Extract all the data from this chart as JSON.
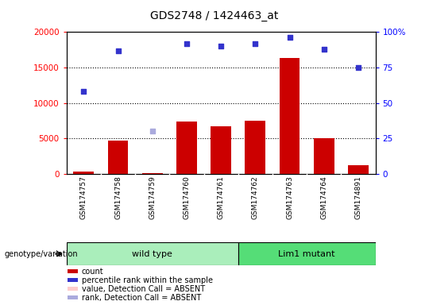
{
  "title": "GDS2748 / 1424463_at",
  "samples": [
    "GSM174757",
    "GSM174758",
    "GSM174759",
    "GSM174760",
    "GSM174761",
    "GSM174762",
    "GSM174763",
    "GSM174764",
    "GSM174891"
  ],
  "count_values": [
    300,
    4700,
    150,
    7400,
    6700,
    7500,
    16300,
    5000,
    1200
  ],
  "rank_values": [
    58,
    87,
    null,
    92,
    90,
    92,
    96,
    88,
    75
  ],
  "rank_absent": [
    null,
    null,
    30,
    null,
    null,
    null,
    null,
    null,
    null
  ],
  "wild_type_indices": [
    0,
    1,
    2,
    3,
    4
  ],
  "lim1_mutant_indices": [
    5,
    6,
    7,
    8
  ],
  "left_ylim": [
    0,
    20000
  ],
  "right_ylim": [
    0,
    100
  ],
  "left_yticks": [
    0,
    5000,
    10000,
    15000,
    20000
  ],
  "right_yticks": [
    0,
    25,
    50,
    75,
    100
  ],
  "right_yticklabels": [
    "0",
    "25",
    "50",
    "75",
    "100%"
  ],
  "bar_color": "#cc0000",
  "rank_color": "#3333cc",
  "absent_count_color": "#ffcccc",
  "absent_rank_color": "#aaaadd",
  "wild_type_color": "#aaeebb",
  "lim1_color": "#55dd77",
  "bg_color": "#cccccc",
  "genotype_label": "genotype/variation",
  "wild_type_label": "wild type",
  "lim1_label": "Lim1 mutant",
  "legend_items": [
    "count",
    "percentile rank within the sample",
    "value, Detection Call = ABSENT",
    "rank, Detection Call = ABSENT"
  ]
}
